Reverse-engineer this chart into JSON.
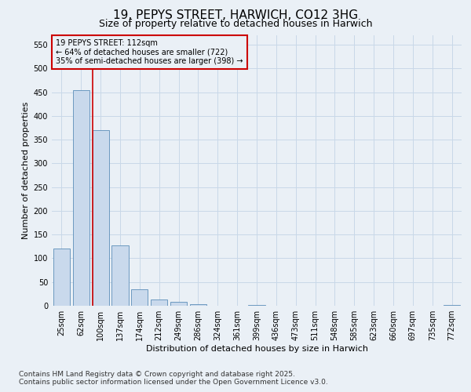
{
  "title": "19, PEPYS STREET, HARWICH, CO12 3HG",
  "subtitle": "Size of property relative to detached houses in Harwich",
  "xlabel": "Distribution of detached houses by size in Harwich",
  "ylabel": "Number of detached properties",
  "categories": [
    "25sqm",
    "62sqm",
    "100sqm",
    "137sqm",
    "174sqm",
    "212sqm",
    "249sqm",
    "286sqm",
    "324sqm",
    "361sqm",
    "399sqm",
    "436sqm",
    "473sqm",
    "511sqm",
    "548sqm",
    "585sqm",
    "623sqm",
    "660sqm",
    "697sqm",
    "735sqm",
    "772sqm"
  ],
  "values": [
    120,
    455,
    370,
    127,
    35,
    14,
    8,
    4,
    0,
    0,
    1,
    0,
    0,
    0,
    0,
    0,
    0,
    0,
    0,
    0,
    1
  ],
  "bar_color": "#c9d9ec",
  "bar_edge_color": "#5b8db8",
  "grid_color": "#c8d8e8",
  "bg_color": "#eaf0f6",
  "annotation_box_text": "19 PEPYS STREET: 112sqm\n← 64% of detached houses are smaller (722)\n35% of semi-detached houses are larger (398) →",
  "annotation_box_edge_color": "#cc0000",
  "vline_color": "#cc0000",
  "ylim": [
    0,
    570
  ],
  "yticks": [
    0,
    50,
    100,
    150,
    200,
    250,
    300,
    350,
    400,
    450,
    500,
    550
  ],
  "footer_line1": "Contains HM Land Registry data © Crown copyright and database right 2025.",
  "footer_line2": "Contains public sector information licensed under the Open Government Licence v3.0.",
  "title_fontsize": 11,
  "subtitle_fontsize": 9,
  "xlabel_fontsize": 8,
  "ylabel_fontsize": 8,
  "tick_fontsize": 7,
  "annotation_fontsize": 7,
  "footer_fontsize": 6.5
}
